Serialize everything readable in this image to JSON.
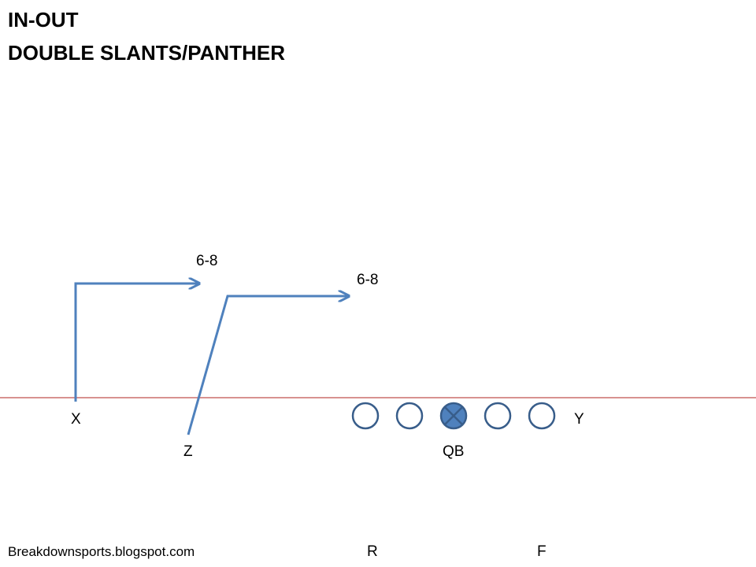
{
  "title": {
    "line1": "IN-OUT",
    "line2": "DOUBLE SLANTS/PANTHER"
  },
  "routes": {
    "x_route_depth": "6-8",
    "z_route_depth": "6-8"
  },
  "players": {
    "x": "X",
    "z": "Z",
    "qb": "QB",
    "y": "Y",
    "r": "R",
    "f": "F"
  },
  "footer": {
    "credit": "Breakdownsports.blogspot.com"
  },
  "colors": {
    "route": "#4f81bd",
    "lineman_stroke": "#385d8a",
    "center_fill": "#4f81bd",
    "line_of_scrimmage": "#c0504d"
  },
  "icons": {
    "lineman": "circle-outline",
    "center": "circle-with-x"
  }
}
